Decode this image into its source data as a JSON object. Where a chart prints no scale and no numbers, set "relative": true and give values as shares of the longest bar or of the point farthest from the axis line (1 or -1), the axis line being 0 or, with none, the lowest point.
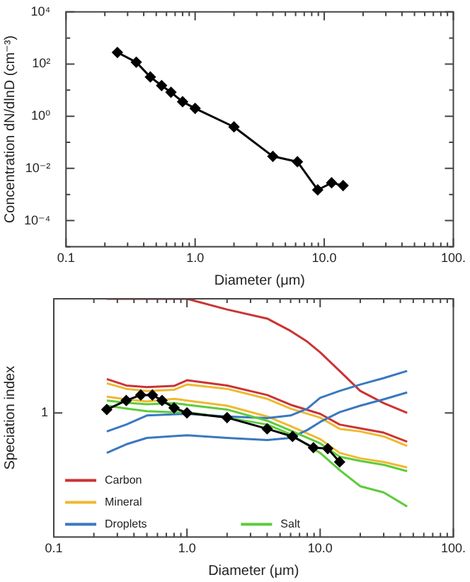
{
  "chart_data": [
    {
      "type": "line",
      "xlabel": "Diameter (μm)",
      "ylabel": "Concentration dN/dlnD (cm⁻³)",
      "log": "xy",
      "marker": "diamond",
      "color": "#000000",
      "x": [
        0.25,
        0.35,
        0.45,
        0.55,
        0.65,
        0.8,
        1.0,
        2.0,
        4.0,
        6.2,
        8.9,
        11.4,
        14
      ],
      "values": [
        280,
        118,
        32,
        15,
        8.3,
        3.6,
        2.0,
        0.39,
        0.029,
        0.018,
        0.0015,
        0.0028,
        0.0022
      ],
      "xlim": [
        0.1,
        100
      ],
      "xticks": [
        {
          "value": 0.1,
          "label": "0.1"
        },
        {
          "value": 0.2,
          "label": null
        },
        {
          "value": 0.3,
          "label": null
        },
        {
          "value": 0.4,
          "label": null
        },
        {
          "value": 0.5,
          "label": null
        },
        {
          "value": 0.6,
          "label": null
        },
        {
          "value": 0.7,
          "label": null
        },
        {
          "value": 0.8,
          "label": null
        },
        {
          "value": 0.9,
          "label": null
        },
        {
          "value": 1,
          "label": "1.0"
        },
        {
          "value": 2,
          "label": null
        },
        {
          "value": 3,
          "label": null
        },
        {
          "value": 4,
          "label": null
        },
        {
          "value": 5,
          "label": null
        },
        {
          "value": 6,
          "label": null
        },
        {
          "value": 7,
          "label": null
        },
        {
          "value": 8,
          "label": null
        },
        {
          "value": 9,
          "label": null
        },
        {
          "value": 10,
          "label": "10.0"
        },
        {
          "value": 20,
          "label": null
        },
        {
          "value": 30,
          "label": null
        },
        {
          "value": 40,
          "label": null
        },
        {
          "value": 50,
          "label": null
        },
        {
          "value": 60,
          "label": null
        },
        {
          "value": 70,
          "label": null
        },
        {
          "value": 80,
          "label": null
        },
        {
          "value": 90,
          "label": null
        },
        {
          "value": 100,
          "label": "100."
        }
      ],
      "ylim": [
        1e-05,
        10000
      ],
      "yticks": [
        {
          "value": 1e-05,
          "label": null
        },
        {
          "value": 0.0001,
          "label": "10⁻⁴"
        },
        {
          "value": 0.001,
          "label": null
        },
        {
          "value": 0.01,
          "label": "10⁻²"
        },
        {
          "value": 0.1,
          "label": null
        },
        {
          "value": 1,
          "label": "10⁰"
        },
        {
          "value": 10,
          "label": null
        },
        {
          "value": 100,
          "label": "10²"
        },
        {
          "value": 1000,
          "label": null
        },
        {
          "value": 10000,
          "label": "10⁴"
        }
      ]
    },
    {
      "type": "line",
      "xlabel": "Diameter (μm)",
      "ylabel": "Speciation index",
      "log": "x",
      "relative": true,
      "marker": "none",
      "legend": "bottom left",
      "xlim": [
        0.1,
        100
      ],
      "xticks": [
        {
          "value": 0.1,
          "label": "0.1"
        },
        {
          "value": 0.2,
          "label": null
        },
        {
          "value": 0.3,
          "label": null
        },
        {
          "value": 0.4,
          "label": null
        },
        {
          "value": 0.5,
          "label": null
        },
        {
          "value": 0.6,
          "label": null
        },
        {
          "value": 0.7,
          "label": null
        },
        {
          "value": 0.8,
          "label": null
        },
        {
          "value": 0.9,
          "label": null
        },
        {
          "value": 1,
          "label": "1.0"
        },
        {
          "value": 2,
          "label": null
        },
        {
          "value": 3,
          "label": null
        },
        {
          "value": 4,
          "label": null
        },
        {
          "value": 5,
          "label": null
        },
        {
          "value": 6,
          "label": null
        },
        {
          "value": 7,
          "label": null
        },
        {
          "value": 8,
          "label": null
        },
        {
          "value": 9,
          "label": null
        },
        {
          "value": 10,
          "label": "10.0"
        },
        {
          "value": 20,
          "label": null
        },
        {
          "value": 30,
          "label": null
        },
        {
          "value": 40,
          "label": null
        },
        {
          "value": 50,
          "label": null
        },
        {
          "value": 60,
          "label": null
        },
        {
          "value": 70,
          "label": null
        },
        {
          "value": 80,
          "label": null
        },
        {
          "value": 90,
          "label": null
        },
        {
          "value": 100,
          "label": "100."
        }
      ],
      "annotations": [
        "1"
      ],
      "series": [
        {
          "name": "Carbon",
          "color": "#cc3333",
          "x": [
            0.25,
            1,
            2,
            4,
            6,
            8,
            10,
            14,
            20,
            30,
            45
          ],
          "values": [
            1,
            1,
            0.955,
            0.917,
            0.865,
            0.82,
            0.775,
            0.697,
            0.613,
            0.562,
            0.521
          ]
        },
        {
          "color": "#cc3333",
          "x": [
            0.25,
            0.35,
            0.5,
            0.8,
            1,
            2,
            4,
            6,
            10,
            14,
            20,
            30,
            45
          ],
          "values": [
            0.663,
            0.636,
            0.629,
            0.634,
            0.658,
            0.636,
            0.596,
            0.555,
            0.517,
            0.472,
            0.456,
            0.438,
            0.4
          ]
        },
        {
          "name": "Mineral",
          "color": "#f0b830",
          "x": [
            0.25,
            0.35,
            0.5,
            0.8,
            1,
            2,
            4,
            6,
            10,
            14,
            20,
            30,
            45
          ],
          "values": [
            0.645,
            0.622,
            0.613,
            0.618,
            0.64,
            0.622,
            0.58,
            0.539,
            0.501,
            0.454,
            0.443,
            0.422,
            0.382
          ]
        },
        {
          "color": "#f0b830",
          "x": [
            0.25,
            0.35,
            0.5,
            0.8,
            1,
            2,
            4,
            6,
            10,
            14,
            20,
            30,
            45
          ],
          "values": [
            0.589,
            0.578,
            0.569,
            0.58,
            0.573,
            0.551,
            0.506,
            0.465,
            0.411,
            0.353,
            0.33,
            0.315,
            0.292
          ]
        },
        {
          "name": "Droplets",
          "color": "#3a78c0",
          "x": [
            0.25,
            0.35,
            0.5,
            1,
            2,
            4,
            6,
            8,
            10,
            14,
            20,
            30,
            45
          ],
          "values": [
            0.443,
            0.472,
            0.51,
            0.517,
            0.506,
            0.499,
            0.51,
            0.539,
            0.584,
            0.613,
            0.64,
            0.667,
            0.697
          ]
        },
        {
          "color": "#3a78c0",
          "x": [
            0.25,
            0.35,
            0.5,
            1,
            2,
            4,
            6,
            8,
            10,
            14,
            20,
            30,
            45
          ],
          "values": [
            0.353,
            0.389,
            0.416,
            0.427,
            0.416,
            0.407,
            0.416,
            0.449,
            0.483,
            0.524,
            0.551,
            0.578,
            0.607
          ]
        },
        {
          "name": "Salt",
          "color": "#5ccc3a",
          "x": [
            0.25,
            0.35,
            0.5,
            0.8,
            1,
            2,
            4,
            6,
            10,
            14,
            20,
            30,
            45
          ],
          "values": [
            0.573,
            0.564,
            0.557,
            0.562,
            0.555,
            0.535,
            0.488,
            0.447,
            0.393,
            0.337,
            0.319,
            0.303,
            0.276
          ]
        },
        {
          "color": "#5ccc3a",
          "x": [
            0.25,
            0.35,
            0.5,
            0.8,
            1,
            2,
            4,
            6,
            10,
            14,
            20,
            30,
            45
          ],
          "values": [
            0.551,
            0.539,
            0.528,
            0.524,
            0.524,
            0.501,
            0.472,
            0.431,
            0.353,
            0.281,
            0.213,
            0.187,
            0.128
          ]
        },
        {
          "color": "#000000",
          "marker": "diamond",
          "x": [
            0.25,
            0.35,
            0.45,
            0.55,
            0.65,
            0.8,
            1.0,
            2.0,
            4.0,
            6.2,
            8.9,
            11.4,
            14
          ],
          "values": [
            0.535,
            0.573,
            0.596,
            0.596,
            0.573,
            0.542,
            0.521,
            0.501,
            0.454,
            0.422,
            0.375,
            0.371,
            0.315
          ]
        }
      ]
    }
  ]
}
